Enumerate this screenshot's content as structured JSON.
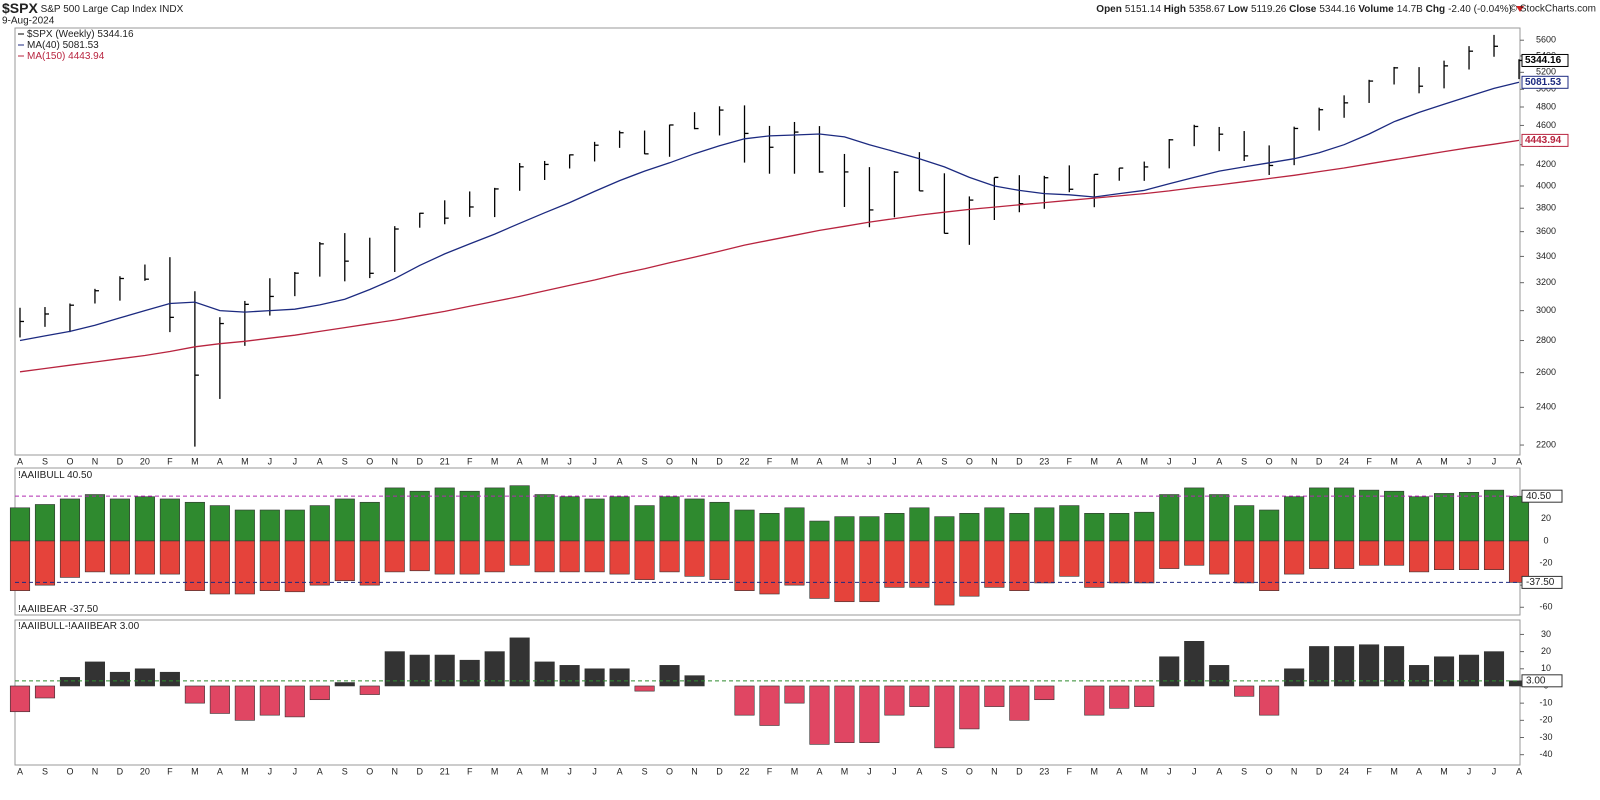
{
  "header": {
    "symbol": "$SPX",
    "name": "S&P 500 Large Cap Index",
    "exchange": "INDX",
    "date": "9-Aug-2024",
    "source": "© StockCharts.com",
    "quote": [
      {
        "label": "Open",
        "value": 5151.14
      },
      {
        "label": "High",
        "value": 5358.67
      },
      {
        "label": "Low",
        "value": 5119.26
      },
      {
        "label": "Close",
        "value": 5344.16
      },
      {
        "label": "Volume",
        "value": "14.7B"
      },
      {
        "label": "Chg",
        "value": "-2.40 (-0.04%)"
      }
    ]
  },
  "chart_data": [
    {
      "type": "ohlc",
      "name": "$SPX (Weekly)",
      "log": true,
      "color": "#000000",
      "categories": [
        "A",
        "S",
        "O",
        "N",
        "D",
        "20",
        "F",
        "M",
        "A",
        "M",
        "J",
        "J",
        "A",
        "S",
        "O",
        "N",
        "D",
        "21",
        "F",
        "M",
        "A",
        "M",
        "J",
        "J",
        "A",
        "S",
        "O",
        "N",
        "D",
        "22",
        "F",
        "M",
        "A",
        "M",
        "J",
        "J",
        "A",
        "S",
        "O",
        "N",
        "D",
        "23",
        "F",
        "M",
        "A",
        "M",
        "J",
        "J",
        "A",
        "S",
        "O",
        "N",
        "D",
        "24",
        "F",
        "M",
        "A",
        "M",
        "J",
        "J",
        "A"
      ],
      "high": [
        3020,
        3025,
        3050,
        3155,
        3248,
        3337,
        3394,
        3137,
        2955,
        3068,
        3233,
        3280,
        3515,
        3588,
        3550,
        3646,
        3760,
        3870,
        3950,
        3983,
        4218,
        4238,
        4302,
        4429,
        4545,
        4546,
        4608,
        4743,
        4808,
        4818,
        4595,
        4637,
        4593,
        4307,
        4178,
        4140,
        4325,
        4119,
        3905,
        4080,
        4101,
        4095,
        4195,
        4110,
        4170,
        4232,
        4458,
        4607,
        4584,
        4541,
        4393,
        4587,
        4793,
        4931,
        5111,
        5265,
        5263,
        5342,
        5524,
        5669,
        5358.67
      ],
      "low": [
        2820,
        2890,
        2855,
        3050,
        3070,
        3214,
        2855,
        2192,
        2447,
        2766,
        2966,
        3102,
        3245,
        3210,
        3234,
        3280,
        3633,
        3662,
        3725,
        3723,
        3956,
        4056,
        4165,
        4233,
        4368,
        4305,
        4279,
        4560,
        4495,
        4222,
        4115,
        4115,
        4124,
        3811,
        3637,
        3721,
        3955,
        3585,
        3492,
        3698,
        3765,
        3795,
        3943,
        3809,
        4049,
        4048,
        4166,
        4385,
        4335,
        4238,
        4103,
        4197,
        4546,
        4682,
        4845,
        5056,
        4954,
        5011,
        5234,
        5390,
        5119.26
      ],
      "close": [
        2926,
        2977,
        3038,
        3141,
        3231,
        3226,
        2954,
        2585,
        2912,
        3044,
        3100,
        3271,
        3500,
        3363,
        3270,
        3622,
        3756,
        3714,
        3811,
        3973,
        4181,
        4204,
        4298,
        4395,
        4523,
        4308,
        4605,
        4567,
        4766,
        4516,
        4374,
        4530,
        4132,
        4132,
        3785,
        4130,
        3955,
        3586,
        3872,
        4080,
        3840,
        4077,
        3970,
        4109,
        4169,
        4180,
        4450,
        4589,
        4508,
        4288,
        4194,
        4568,
        4770,
        4846,
        5096,
        5254,
        5036,
        5278,
        5460,
        5522,
        5344.16
      ],
      "overlays": [
        {
          "name": "MA(40)",
          "color": "#1c2a80",
          "values": [
            2800,
            2830,
            2860,
            2900,
            2950,
            3000,
            3050,
            3060,
            3000,
            2990,
            3000,
            3010,
            3040,
            3080,
            3150,
            3230,
            3330,
            3420,
            3500,
            3580,
            3670,
            3760,
            3850,
            3950,
            4050,
            4140,
            4220,
            4310,
            4390,
            4460,
            4490,
            4500,
            4510,
            4480,
            4400,
            4330,
            4260,
            4180,
            4080,
            4000,
            3960,
            3930,
            3920,
            3900,
            3930,
            3960,
            4020,
            4080,
            4140,
            4180,
            4220,
            4260,
            4320,
            4400,
            4510,
            4640,
            4740,
            4830,
            4920,
            5010,
            5081.53
          ]
        },
        {
          "name": "MA(150)",
          "color": "#b8243f",
          "values": [
            2605,
            2625,
            2645,
            2665,
            2685,
            2705,
            2730,
            2760,
            2780,
            2795,
            2815,
            2835,
            2860,
            2885,
            2910,
            2935,
            2965,
            2995,
            3030,
            3065,
            3100,
            3140,
            3180,
            3220,
            3265,
            3305,
            3350,
            3395,
            3440,
            3490,
            3530,
            3570,
            3610,
            3645,
            3680,
            3710,
            3740,
            3765,
            3790,
            3810,
            3830,
            3850,
            3870,
            3890,
            3910,
            3930,
            3955,
            3985,
            4010,
            4040,
            4070,
            4100,
            4135,
            4170,
            4210,
            4250,
            4290,
            4330,
            4370,
            4405,
            4443.94
          ]
        }
      ],
      "ylim": [
        2150,
        5760
      ],
      "yticks": [
        2200,
        2400,
        2600,
        2800,
        3000,
        3200,
        3400,
        3600,
        3800,
        4000,
        4200,
        4400,
        4600,
        4800,
        5000,
        5200,
        5400,
        5600
      ]
    },
    {
      "type": "bar",
      "series": [
        {
          "name": "!AAIIBULL",
          "color": "#2f8a2f",
          "values": [
            30,
            33,
            38,
            42,
            38,
            40,
            38,
            35,
            32,
            28,
            28,
            28,
            32,
            38,
            35,
            48,
            45,
            48,
            45,
            48,
            50,
            42,
            40,
            38,
            40,
            32,
            40,
            38,
            35,
            28,
            25,
            30,
            18,
            22,
            22,
            25,
            30,
            22,
            25,
            30,
            25,
            30,
            32,
            25,
            25,
            26,
            42,
            48,
            42,
            32,
            28,
            40,
            48,
            48,
            46,
            45,
            40,
            43,
            44,
            46,
            40.5
          ]
        },
        {
          "name": "!AAIIBEAR",
          "color": "#e5433b",
          "values": [
            -45,
            -40,
            -33,
            -28,
            -30,
            -30,
            -30,
            -45,
            -48,
            -48,
            -45,
            -46,
            -40,
            -36,
            -40,
            -28,
            -27,
            -30,
            -30,
            -28,
            -22,
            -28,
            -28,
            -28,
            -30,
            -35,
            -28,
            -32,
            -35,
            -45,
            -48,
            -40,
            -52,
            -55,
            -55,
            -42,
            -42,
            -58,
            -50,
            -42,
            -45,
            -38,
            -32,
            -42,
            -38,
            -38,
            -25,
            -22,
            -30,
            -38,
            -45,
            -30,
            -25,
            -25,
            -22,
            -22,
            -28,
            -26,
            -26,
            -26,
            -37.5
          ]
        }
      ],
      "hlines": [
        {
          "value": 40.5,
          "label": "40.50",
          "color": "#b02ab0"
        },
        {
          "value": -37.5,
          "label": "-37.50",
          "color": "#1c2a80"
        }
      ],
      "ylim": [
        -67,
        66
      ],
      "yticks": [
        -60,
        -40,
        -20,
        0,
        20,
        40
      ]
    },
    {
      "type": "bar",
      "categories": [
        "A",
        "S",
        "O",
        "N",
        "D",
        "20",
        "F",
        "M",
        "A",
        "M",
        "J",
        "J",
        "A",
        "S",
        "O",
        "N",
        "D",
        "21",
        "F",
        "M",
        "A",
        "M",
        "J",
        "J",
        "A",
        "S",
        "O",
        "N",
        "D",
        "22",
        "F",
        "M",
        "A",
        "M",
        "J",
        "J",
        "A",
        "S",
        "O",
        "N",
        "D",
        "23",
        "F",
        "M",
        "A",
        "M",
        "J",
        "J",
        "A",
        "S",
        "O",
        "N",
        "D",
        "24",
        "F",
        "M",
        "A",
        "M",
        "J",
        "J",
        "A"
      ],
      "series": [
        {
          "name": "!AAIIBULL-!AAIIBEAR",
          "color": "#333333",
          "neg_color": "#e04663",
          "values": [
            -15,
            -7,
            5,
            14,
            8,
            10,
            8,
            -10,
            -16,
            -20,
            -17,
            -18,
            -8,
            2,
            -5,
            20,
            18,
            18,
            15,
            20,
            28,
            14,
            12,
            10,
            10,
            -3,
            12,
            6,
            0,
            -17,
            -23,
            -10,
            -34,
            -33,
            -33,
            -17,
            -12,
            -36,
            -25,
            -12,
            -20,
            -8,
            0,
            -17,
            -13,
            -12,
            17,
            26,
            12,
            -6,
            -17,
            10,
            23,
            23,
            24,
            23,
            12,
            17,
            18,
            20,
            3
          ]
        }
      ],
      "hlines": [
        {
          "value": 3,
          "label": "3.00",
          "color": "#2f8a2f"
        }
      ],
      "ylim": [
        -46,
        38.4
      ],
      "yticks": [
        -40,
        -30,
        -20,
        -10,
        0,
        10,
        20,
        30
      ]
    }
  ]
}
